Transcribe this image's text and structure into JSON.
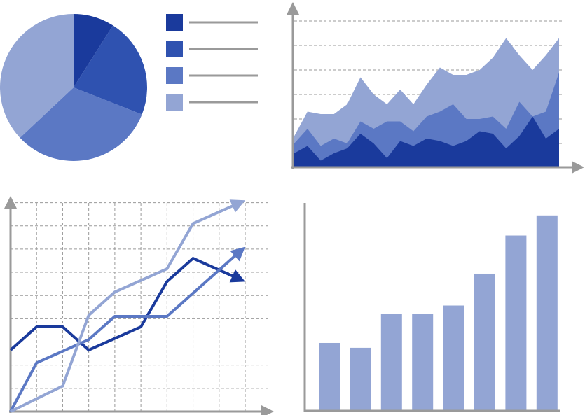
{
  "chart_data": [
    {
      "type": "pie",
      "categories": [
        null,
        null,
        null,
        null
      ],
      "values": [
        9,
        22,
        32,
        37
      ],
      "colors": [
        "#1a3a9c",
        "#2f52b0",
        "#5b78c4",
        "#93a5d4"
      ]
    },
    {
      "type": "area",
      "x": [
        0,
        5,
        10,
        15,
        20,
        25,
        30,
        35,
        40,
        45,
        50,
        55,
        60,
        65,
        70,
        75,
        80,
        85,
        90,
        95,
        100
      ],
      "xlim": [
        0,
        100
      ],
      "ylim": [
        0,
        6
      ],
      "yticks": [
        1,
        2,
        3,
        4,
        5,
        6
      ],
      "grid": true,
      "series": [
        {
          "color": "#93a5d4",
          "values": [
            1.3,
            2.3,
            2.2,
            2.2,
            2.6,
            3.7,
            3.0,
            2.6,
            3.2,
            2.6,
            3.4,
            4.1,
            3.8,
            3.8,
            4.0,
            4.5,
            5.3,
            4.6,
            4.0,
            4.6,
            5.3
          ]
        },
        {
          "color": "#5b78c4",
          "values": [
            1.0,
            1.6,
            0.9,
            1.2,
            1.0,
            1.9,
            1.6,
            1.9,
            1.9,
            1.5,
            2.1,
            2.3,
            2.6,
            2.0,
            2.0,
            2.1,
            1.6,
            2.7,
            2.1,
            2.3,
            3.9
          ]
        },
        {
          "color": "#1a3a9c",
          "values": [
            0.6,
            0.9,
            0.3,
            0.6,
            0.8,
            1.4,
            1.0,
            0.4,
            1.1,
            0.9,
            1.2,
            1.1,
            0.9,
            1.1,
            1.5,
            1.4,
            0.8,
            1.3,
            2.1,
            1.2,
            1.6
          ]
        }
      ]
    },
    {
      "type": "line",
      "x": [
        0,
        1,
        2,
        3,
        4,
        5,
        6,
        7,
        8,
        9
      ],
      "xlim": [
        0,
        9
      ],
      "ylim": [
        0,
        9.5
      ],
      "xticks": [
        1,
        2,
        3,
        4,
        5,
        6,
        7,
        8,
        9
      ],
      "yticks": [
        1,
        2,
        3,
        4,
        5,
        6,
        7,
        8,
        9
      ],
      "grid": true,
      "series": [
        {
          "color": "#1a3a9c",
          "values": [
            2.65,
            3.65,
            3.65,
            2.65,
            3.15,
            3.65,
            5.6,
            6.6,
            6.1,
            5.6
          ]
        },
        {
          "color": "#5b78c4",
          "values": [
            0,
            2.1,
            2.6,
            3.1,
            4.1,
            4.1,
            4.1,
            5.1,
            6.1,
            7.1
          ]
        },
        {
          "color": "#93a5d4",
          "values": [
            0,
            0.55,
            1.1,
            4.15,
            5.15,
            5.65,
            6.15,
            8.1,
            8.6,
            9.1
          ]
        }
      ]
    },
    {
      "type": "bar",
      "categories": [
        null,
        null,
        null,
        null,
        null,
        null,
        null,
        null
      ],
      "values": [
        98,
        91,
        140,
        140,
        152,
        198,
        253,
        282
      ],
      "color": "#93a5d4",
      "ylim": [
        0,
        300
      ]
    }
  ]
}
